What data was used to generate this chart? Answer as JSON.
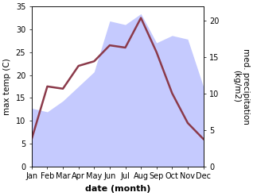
{
  "months": [
    "Jan",
    "Feb",
    "Mar",
    "Apr",
    "May",
    "Jun",
    "Jul",
    "Aug",
    "Sep",
    "Oct",
    "Nov",
    "Dec"
  ],
  "month_positions": [
    0,
    1,
    2,
    3,
    4,
    5,
    6,
    7,
    8,
    9,
    10,
    11
  ],
  "temperature": [
    6.0,
    17.5,
    17.0,
    22.0,
    23.0,
    26.5,
    26.0,
    32.5,
    25.0,
    16.0,
    9.5,
    6.0
  ],
  "precipitation": [
    8.0,
    7.5,
    9.0,
    11.0,
    13.0,
    20.0,
    19.5,
    21.0,
    17.0,
    18.0,
    17.5,
    11.0
  ],
  "temp_color": "#8B3A4A",
  "precip_fill_color": "#C5CAFE",
  "temp_linewidth": 1.8,
  "xlim": [
    0,
    11
  ],
  "temp_ylim": [
    0,
    35
  ],
  "precip_ylim": [
    0,
    22
  ],
  "temp_yticks": [
    0,
    5,
    10,
    15,
    20,
    25,
    30,
    35
  ],
  "precip_yticks": [
    0,
    5,
    10,
    15,
    20
  ],
  "ylabel_left": "max temp (C)",
  "ylabel_right": "med. precipitation\n(kg/m2)",
  "xlabel": "date (month)",
  "xlabel_fontsize": 8,
  "ylabel_fontsize": 7.5,
  "tick_fontsize": 7,
  "background_color": "#ffffff"
}
